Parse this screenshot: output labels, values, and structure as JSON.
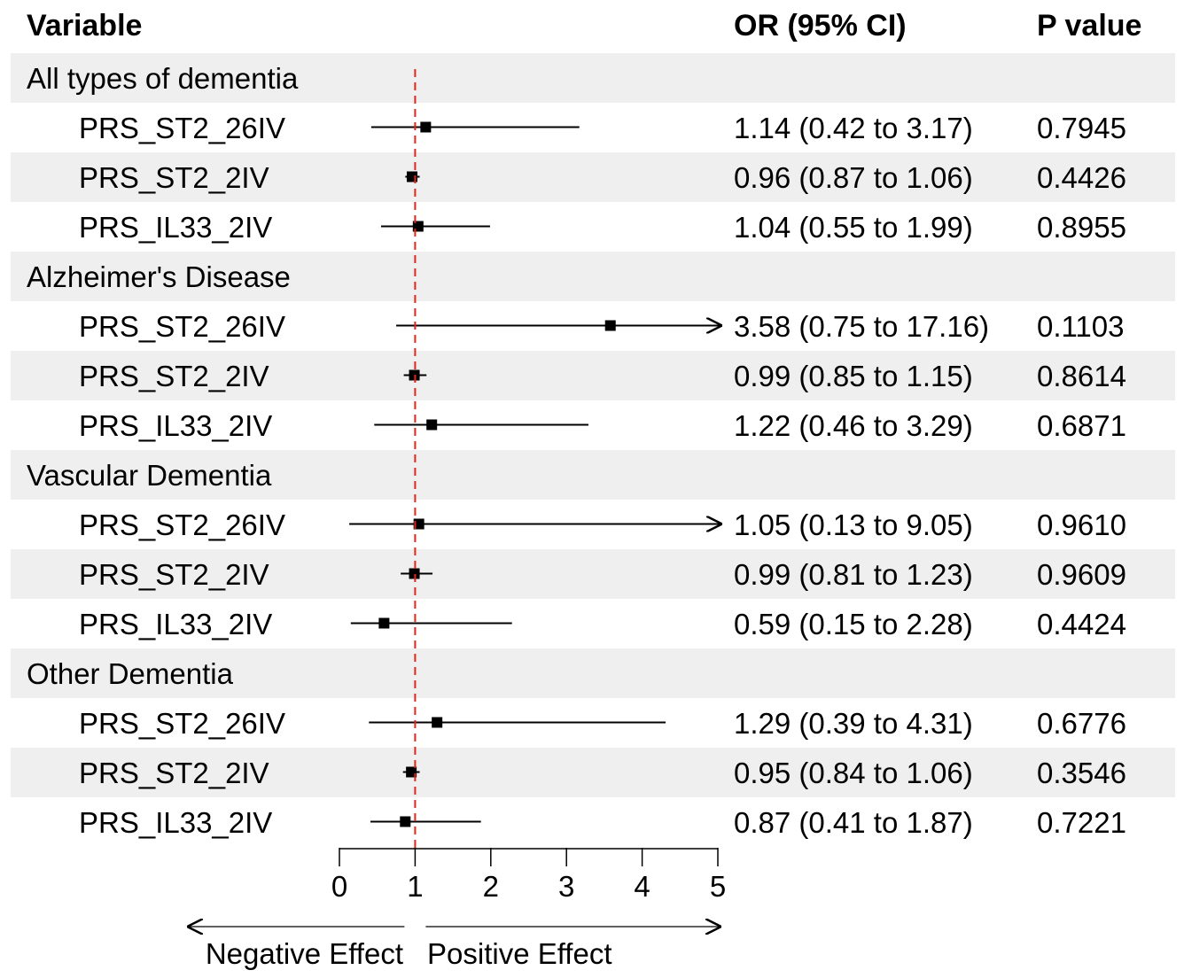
{
  "headers": {
    "variable": "Variable",
    "or": "OR (95% CI)",
    "p": "P value"
  },
  "chart_data": {
    "type": "forest",
    "reference_line": 1,
    "xlim": [
      0,
      5
    ],
    "x_ticks": [
      "0",
      "1",
      "2",
      "3",
      "4",
      "5"
    ],
    "direction_labels": {
      "negative": "Negative Effect",
      "positive": "Positive Effect"
    },
    "groups": [
      {
        "name": "All types of dementia",
        "rows": [
          {
            "label": "PRS_ST2_26IV",
            "or": 1.14,
            "lo": 0.42,
            "hi": 3.17,
            "or_text": "1.14 (0.42 to 3.17)",
            "p": "0.7945"
          },
          {
            "label": "PRS_ST2_2IV",
            "or": 0.96,
            "lo": 0.87,
            "hi": 1.06,
            "or_text": "0.96 (0.87 to 1.06)",
            "p": "0.4426"
          },
          {
            "label": "PRS_IL33_2IV",
            "or": 1.04,
            "lo": 0.55,
            "hi": 1.99,
            "or_text": "1.04 (0.55 to 1.99)",
            "p": "0.8955"
          }
        ]
      },
      {
        "name": "Alzheimer's Disease",
        "rows": [
          {
            "label": "PRS_ST2_26IV",
            "or": 3.58,
            "lo": 0.75,
            "hi": 17.16,
            "or_text": "3.58 (0.75 to 17.16)",
            "p": "0.1103"
          },
          {
            "label": "PRS_ST2_2IV",
            "or": 0.99,
            "lo": 0.85,
            "hi": 1.15,
            "or_text": "0.99 (0.85 to 1.15)",
            "p": "0.8614"
          },
          {
            "label": "PRS_IL33_2IV",
            "or": 1.22,
            "lo": 0.46,
            "hi": 3.29,
            "or_text": "1.22 (0.46 to 3.29)",
            "p": "0.6871"
          }
        ]
      },
      {
        "name": "Vascular Dementia",
        "rows": [
          {
            "label": "PRS_ST2_26IV",
            "or": 1.05,
            "lo": 0.13,
            "hi": 9.05,
            "or_text": "1.05 (0.13 to 9.05)",
            "p": "0.9610"
          },
          {
            "label": "PRS_ST2_2IV",
            "or": 0.99,
            "lo": 0.81,
            "hi": 1.23,
            "or_text": "0.99 (0.81 to 1.23)",
            "p": "0.9609"
          },
          {
            "label": "PRS_IL33_2IV",
            "or": 0.59,
            "lo": 0.15,
            "hi": 2.28,
            "or_text": "0.59 (0.15 to 2.28)",
            "p": "0.4424"
          }
        ]
      },
      {
        "name": "Other Dementia",
        "rows": [
          {
            "label": "PRS_ST2_26IV",
            "or": 1.29,
            "lo": 0.39,
            "hi": 4.31,
            "or_text": "1.29 (0.39 to 4.31)",
            "p": "0.6776"
          },
          {
            "label": "PRS_ST2_2IV",
            "or": 0.95,
            "lo": 0.84,
            "hi": 1.06,
            "or_text": "0.95 (0.84 to 1.06)",
            "p": "0.3546"
          },
          {
            "label": "PRS_IL33_2IV",
            "or": 0.87,
            "lo": 0.41,
            "hi": 1.87,
            "or_text": "0.87 (0.41 to 1.87)",
            "p": "0.7221"
          }
        ]
      }
    ]
  }
}
